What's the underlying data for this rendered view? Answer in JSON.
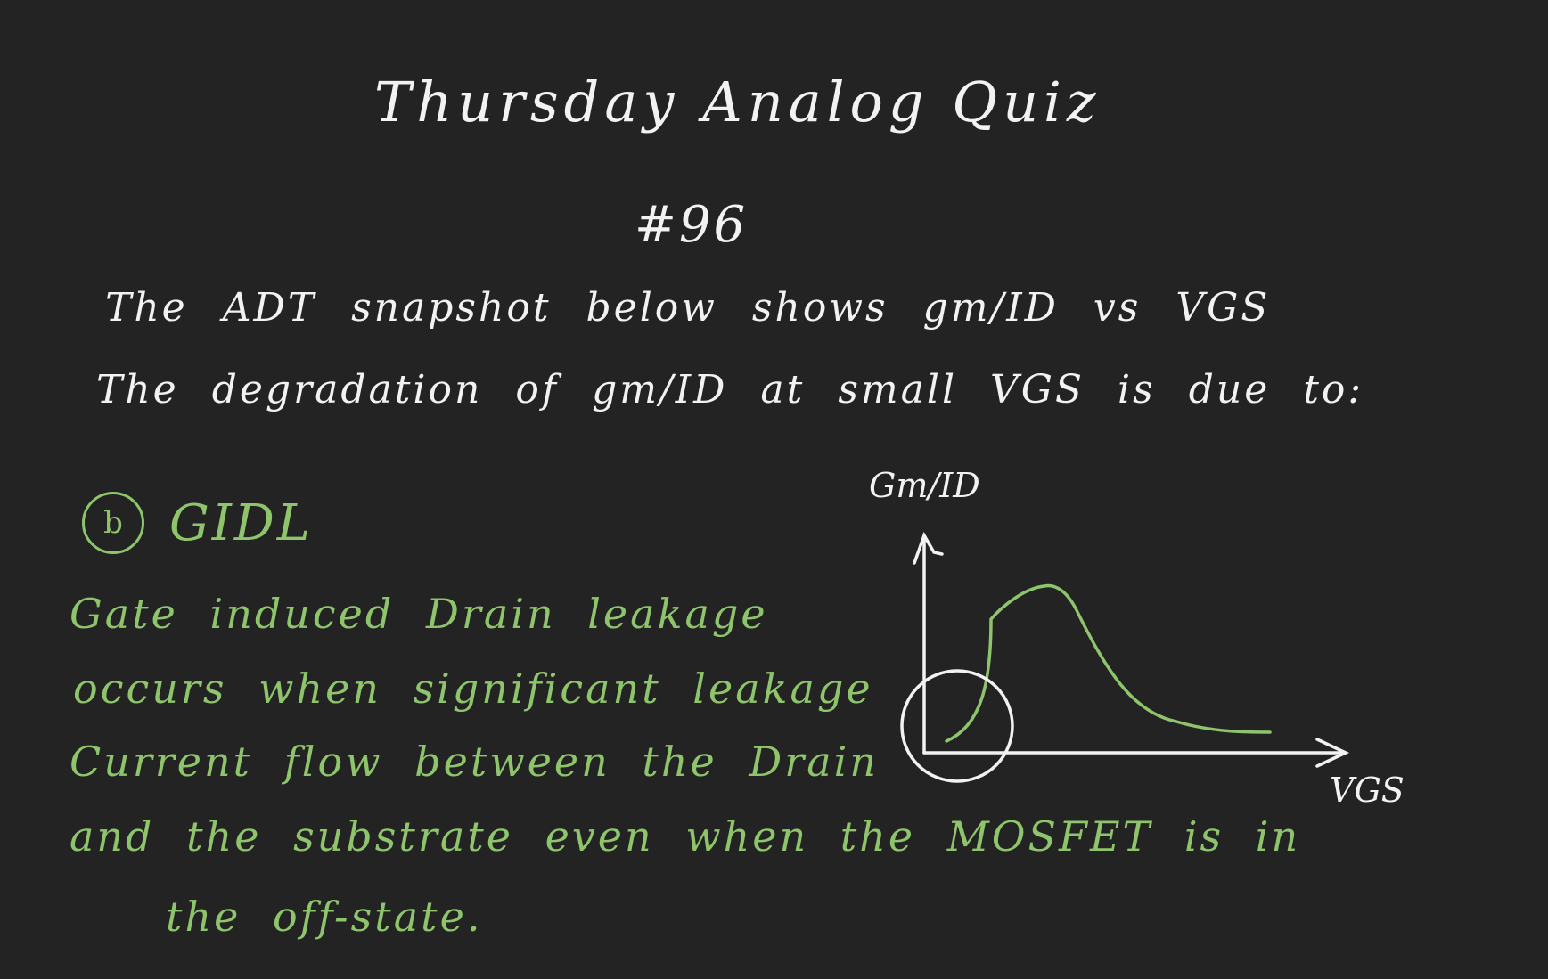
{
  "title": "Thursday Analog Quiz",
  "number": "#96",
  "question": {
    "line1": "The ADT snapshot below shows gm/ID vs VGS",
    "line2": "The degradation of gm/ID at small VGS is due to:"
  },
  "answer": {
    "badge": "b",
    "label": "GIDL"
  },
  "explanation": [
    "Gate induced Drain leakage",
    "occurs when significant leakage",
    "Current flow between the Drain",
    "and the substrate even when the MOSFET is in",
    "the off-state."
  ],
  "diagram": {
    "ylabel": "Gm/ID",
    "xlabel": "VGS",
    "curve_color": "#8ec46b",
    "axis_color": "#f2f2f2",
    "highlight": "circle around low-VGS region"
  }
}
